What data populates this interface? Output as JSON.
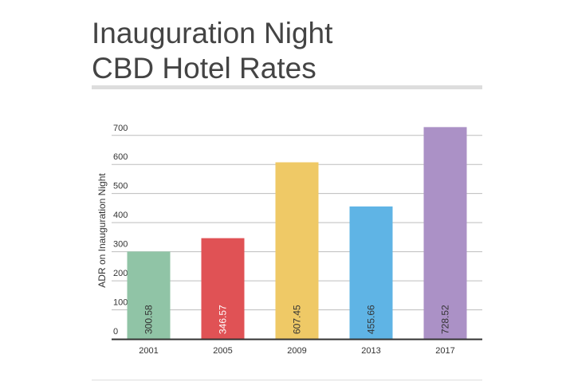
{
  "chart_data": {
    "type": "bar",
    "title_lines": [
      "Inauguration Night",
      "CBD Hotel Rates"
    ],
    "xlabel": "",
    "ylabel": "ADR on Inauguration Night",
    "categories": [
      "2001",
      "2005",
      "2009",
      "2013",
      "2017"
    ],
    "values": [
      300.58,
      346.57,
      607.45,
      455.66,
      728.52
    ],
    "data_labels": [
      "300.58",
      "346.57",
      "607.45",
      "455.66",
      "728.52"
    ],
    "colors": [
      "#90c4a6",
      "#e05255",
      "#efc966",
      "#5fb4e5",
      "#ab91c6"
    ],
    "label_colors": [
      "#333333",
      "#ffffff",
      "#333333",
      "#333333",
      "#333333"
    ],
    "yticks": [
      0,
      100,
      200,
      300,
      400,
      500,
      600,
      700
    ],
    "ylim": [
      0,
      735
    ],
    "grid": true,
    "legend": "none"
  }
}
